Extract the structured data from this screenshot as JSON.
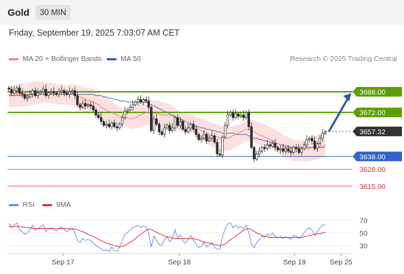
{
  "header": {
    "title": "Gold",
    "timeframe": "30 MIN"
  },
  "datetime": "Friday, September 19, 2025 7:03:07 AM CET",
  "legend": {
    "ma20_label": "MA 20 + Bollinger Bands",
    "ma50_label": "MA 50",
    "rsi_label": "RSI",
    "rsi_ma_label": "9MA",
    "research": "Research © 2025 Trading Central"
  },
  "colors": {
    "band_fill": "#fbd5d5",
    "ma20": "#f08080",
    "ma50": "#5a6fa8",
    "resistance": "#5aa000",
    "support_blue": "#3060d0",
    "support_red": "#e06060",
    "current": "#333333",
    "arrow": "#2a5aa8",
    "rsi": "#6a8fe0",
    "rsi_ma": "#d83030",
    "candle": "#2a2a2a"
  },
  "chart_data": [
    {
      "type": "candlestick",
      "title": "Gold",
      "ylim": [
        3608,
        3706
      ],
      "x_ticks": [
        "Sep 17",
        "Sep 18",
        "Sep 19",
        "Sep 25"
      ],
      "levels": [
        {
          "label": "3688.00",
          "value": 3688,
          "kind": "resistance"
        },
        {
          "label": "3672.00",
          "value": 3672,
          "kind": "resistance"
        },
        {
          "label": "3657.32",
          "value": 3657.32,
          "kind": "current"
        },
        {
          "label": "3638.00",
          "value": 3638,
          "kind": "support"
        },
        {
          "label": "3628.00",
          "value": 3628,
          "kind": "support-minor"
        },
        {
          "label": "3615.00",
          "value": 3615,
          "kind": "support-minor"
        }
      ],
      "close": [
        3690,
        3687,
        3689,
        3691,
        3687,
        3686,
        3683,
        3684,
        3686,
        3689,
        3685,
        3687,
        3688,
        3690,
        3685,
        3687,
        3688,
        3687,
        3686,
        3688,
        3689,
        3687,
        3686,
        3688,
        3689,
        3685,
        3678,
        3676,
        3679,
        3677,
        3678,
        3677,
        3674,
        3670,
        3668,
        3665,
        3662,
        3663,
        3661,
        3664,
        3661,
        3660,
        3663,
        3668,
        3673,
        3674,
        3676,
        3678,
        3680,
        3682,
        3680,
        3682,
        3681,
        3676,
        3658,
        3667,
        3663,
        3657,
        3655,
        3660,
        3662,
        3658,
        3660,
        3668,
        3662,
        3665,
        3659,
        3657,
        3660,
        3663,
        3659,
        3655,
        3651,
        3652,
        3655,
        3650,
        3652,
        3654,
        3649,
        3640,
        3639,
        3653,
        3662,
        3670,
        3672,
        3668,
        3671,
        3669,
        3670,
        3668,
        3672,
        3661,
        3645,
        3636,
        3640,
        3642,
        3645,
        3644,
        3647,
        3646,
        3648,
        3645,
        3643,
        3644,
        3642,
        3644,
        3642,
        3641,
        3645,
        3644,
        3641,
        3644,
        3647,
        3651,
        3652,
        3650,
        3644,
        3648,
        3652,
        3656,
        3657
      ],
      "ma20": [
        3686,
        3686,
        3686,
        3686,
        3686,
        3686,
        3686,
        3686,
        3686,
        3686,
        3686,
        3686,
        3686,
        3686,
        3686,
        3686,
        3686,
        3686,
        3686,
        3686,
        3687,
        3687,
        3687,
        3687,
        3687,
        3686,
        3685,
        3684,
        3683,
        3682,
        3681,
        3681,
        3680,
        3679,
        3678,
        3676,
        3675,
        3674,
        3673,
        3672,
        3671,
        3670,
        3669,
        3668,
        3668,
        3668,
        3667,
        3667,
        3668,
        3669,
        3670,
        3671,
        3672,
        3672,
        3672,
        3671,
        3671,
        3671,
        3670,
        3670,
        3670,
        3670,
        3669,
        3668,
        3667,
        3666,
        3665,
        3665,
        3664,
        3663,
        3662,
        3661,
        3659,
        3658,
        3657,
        3656,
        3655,
        3654,
        3654,
        3653,
        3652,
        3652,
        3652,
        3652,
        3653,
        3654,
        3655,
        3656,
        3657,
        3658,
        3659,
        3659,
        3658,
        3657,
        3656,
        3655,
        3654,
        3653,
        3652,
        3651,
        3650,
        3649,
        3648,
        3647,
        3646,
        3645,
        3645,
        3644,
        3644,
        3644,
        3644,
        3644,
        3644,
        3644,
        3644,
        3645,
        3645,
        3645,
        3646,
        3646,
        3647
      ],
      "ma50": [
        3685,
        3685,
        3685,
        3685,
        3685,
        3685,
        3685,
        3685,
        3686,
        3686,
        3686,
        3686,
        3686,
        3686,
        3686,
        3686,
        3686,
        3686,
        3686,
        3686,
        3686,
        3686,
        3686,
        3686,
        3686,
        3686,
        3686,
        3686,
        3686,
        3686,
        3686,
        3686,
        3686,
        3685,
        3685,
        3685,
        3684,
        3684,
        3683,
        3683,
        3682,
        3682,
        3681,
        3681,
        3681,
        3680,
        3680,
        3680,
        3680,
        3680,
        3680,
        3680,
        3680,
        3679,
        3678,
        3677,
        3676,
        3675,
        3674,
        3673,
        3672,
        3671,
        3670,
        3669,
        3668,
        3667,
        3666,
        3665,
        3664,
        3663,
        3662,
        3661,
        3661,
        3660,
        3660,
        3659,
        3659,
        3658,
        3658,
        3657,
        3657,
        3656,
        3656,
        3656,
        3656,
        3656,
        3655,
        3655,
        3655,
        3655,
        3655,
        3654,
        3653,
        3652,
        3652,
        3651,
        3651,
        3650,
        3650,
        3649,
        3649,
        3648,
        3648,
        3647,
        3647,
        3646,
        3646,
        3645,
        3645,
        3645,
        3645,
        3645,
        3645,
        3645,
        3645,
        3645,
        3645,
        3645,
        3645,
        3645,
        3645
      ]
    },
    {
      "type": "line",
      "title": "RSI",
      "ylim": [
        20,
        80
      ],
      "y_ticks": [
        70,
        50,
        30
      ],
      "series": [
        {
          "name": "RSI",
          "values": [
            65,
            58,
            62,
            66,
            55,
            52,
            48,
            50,
            55,
            62,
            54,
            57,
            59,
            63,
            52,
            56,
            58,
            55,
            53,
            57,
            59,
            55,
            52,
            56,
            58,
            50,
            38,
            35,
            42,
            38,
            40,
            38,
            34,
            30,
            28,
            25,
            22,
            24,
            21,
            28,
            22,
            21,
            29,
            38,
            48,
            51,
            55,
            58,
            60,
            62,
            58,
            61,
            59,
            50,
            28,
            45,
            38,
            32,
            30,
            40,
            44,
            36,
            41,
            55,
            42,
            47,
            37,
            34,
            40,
            46,
            38,
            33,
            27,
            29,
            36,
            28,
            31,
            35,
            27,
            25,
            24,
            45,
            56,
            64,
            66,
            58,
            62,
            58,
            60,
            57,
            62,
            50,
            32,
            27,
            35,
            40,
            45,
            43,
            48,
            46,
            50,
            45,
            42,
            44,
            41,
            44,
            42,
            40,
            46,
            45,
            41,
            45,
            50,
            56,
            58,
            54,
            46,
            52,
            58,
            62,
            63
          ]
        },
        {
          "name": "9MA",
          "values": [
            60,
            60,
            60,
            60,
            60,
            59,
            59,
            58,
            58,
            57,
            57,
            57,
            57,
            57,
            57,
            57,
            57,
            57,
            57,
            57,
            57,
            57,
            57,
            56,
            56,
            56,
            55,
            53,
            52,
            50,
            48,
            46,
            44,
            42,
            40,
            38,
            36,
            34,
            33,
            31,
            30,
            29,
            28,
            29,
            30,
            33,
            35,
            38,
            41,
            45,
            48,
            51,
            54,
            56,
            55,
            53,
            51,
            49,
            47,
            45,
            44,
            43,
            42,
            41,
            41,
            41,
            41,
            41,
            41,
            41,
            41,
            40,
            39,
            37,
            36,
            35,
            34,
            33,
            32,
            31,
            30,
            31,
            33,
            36,
            39,
            42,
            45,
            48,
            51,
            54,
            56,
            57,
            55,
            52,
            50,
            48,
            46,
            45,
            44,
            43,
            43,
            43,
            43,
            43,
            43,
            43,
            43,
            43,
            43,
            43,
            43,
            43,
            44,
            45,
            46,
            47,
            48,
            48,
            49,
            50,
            51
          ]
        }
      ]
    }
  ]
}
